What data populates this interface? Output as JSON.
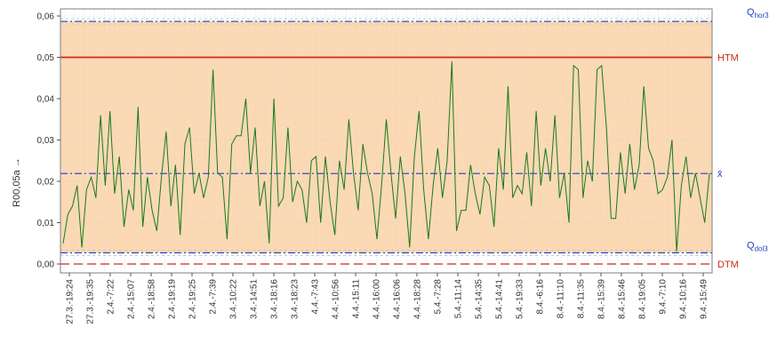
{
  "chart_data": {
    "type": "line",
    "ylabel": "R00,05a →",
    "ylim": [
      0,
      0.06
    ],
    "y_ticks": [
      "0,00",
      "0,01",
      "0,02",
      "0,03",
      "0,04",
      "0,05",
      "0,06"
    ],
    "grid": true,
    "x_tick_labels": [
      "27.3.-19:24",
      "27.3.-19:35",
      "2.4.-7:22",
      "2.4.-15:07",
      "2.4.-18:58",
      "2.4.-19:19",
      "2.4.-19:25",
      "2.4.-7:39",
      "3.4.-10:22",
      "3.4.-14:51",
      "3.4.-18:16",
      "3.4.-18:23",
      "4.4.-7:43",
      "4.4.-10:56",
      "4.4.-15:11",
      "4.4.-16:00",
      "4.4.-16:06",
      "4.4.-18:28",
      "5.4.-7:28",
      "5.4.-11:14",
      "5.4.-14:35",
      "5.4.-14:41",
      "5.4.-19:33",
      "8.4.-6:16",
      "8.4.-11:10",
      "8.4.-11:35",
      "8.4.-15:39",
      "8.4.-15:46",
      "8.4.-19:05",
      "9.4.-7:10",
      "9.4.-10:16",
      "9.4.-15:49"
    ],
    "series": [
      {
        "color": "#1a7a1a",
        "values": [
          0.005,
          0.012,
          0.014,
          0.019,
          0.004,
          0.018,
          0.021,
          0.016,
          0.036,
          0.019,
          0.037,
          0.017,
          0.026,
          0.009,
          0.018,
          0.013,
          0.038,
          0.009,
          0.021,
          0.013,
          0.008,
          0.021,
          0.032,
          0.014,
          0.024,
          0.007,
          0.029,
          0.033,
          0.017,
          0.022,
          0.016,
          0.021,
          0.047,
          0.022,
          0.021,
          0.006,
          0.029,
          0.031,
          0.031,
          0.04,
          0.022,
          0.033,
          0.014,
          0.02,
          0.005,
          0.04,
          0.014,
          0.016,
          0.033,
          0.015,
          0.02,
          0.018,
          0.01,
          0.025,
          0.026,
          0.01,
          0.026,
          0.015,
          0.007,
          0.025,
          0.018,
          0.035,
          0.022,
          0.013,
          0.029,
          0.022,
          0.017,
          0.006,
          0.019,
          0.035,
          0.022,
          0.011,
          0.026,
          0.017,
          0.004,
          0.026,
          0.037,
          0.018,
          0.006,
          0.019,
          0.028,
          0.016,
          0.025,
          0.049,
          0.008,
          0.013,
          0.013,
          0.024,
          0.017,
          0.012,
          0.021,
          0.019,
          0.009,
          0.028,
          0.018,
          0.043,
          0.016,
          0.019,
          0.017,
          0.027,
          0.014,
          0.037,
          0.019,
          0.028,
          0.02,
          0.036,
          0.016,
          0.022,
          0.01,
          0.048,
          0.047,
          0.016,
          0.025,
          0.02,
          0.047,
          0.048,
          0.033,
          0.011,
          0.011,
          0.027,
          0.017,
          0.029,
          0.018,
          0.024,
          0.043,
          0.028,
          0.025,
          0.017,
          0.018,
          0.021,
          0.03,
          0.003,
          0.019,
          0.026,
          0.016,
          0.022,
          0.016,
          0.01,
          0.022
        ]
      }
    ],
    "reference_lines": [
      {
        "label": "Q",
        "label_sub": "hor3",
        "value": 0.0587,
        "color": "#1f3fbf",
        "style": "dashdot",
        "shadow": "#c9c9c9"
      },
      {
        "label": "HTM",
        "value": 0.05,
        "color": "#cc2a1a",
        "style": "solid"
      },
      {
        "label": "x̄",
        "value": 0.0219,
        "color": "#1f3fbf",
        "style": "dashdot"
      },
      {
        "label": "Q",
        "label_sub": "dol3",
        "value": 0.0027,
        "color": "#1f3fbf",
        "style": "dashdot",
        "shadow": "#c9c9c9"
      },
      {
        "label": "DTM",
        "value": 0.0,
        "color": "#cc2a1a",
        "style": "dashed"
      }
    ],
    "colors": {
      "plot_background": "#fbd9b4",
      "outer_band": "#ffffff",
      "grid": "#cfcfcf"
    }
  }
}
